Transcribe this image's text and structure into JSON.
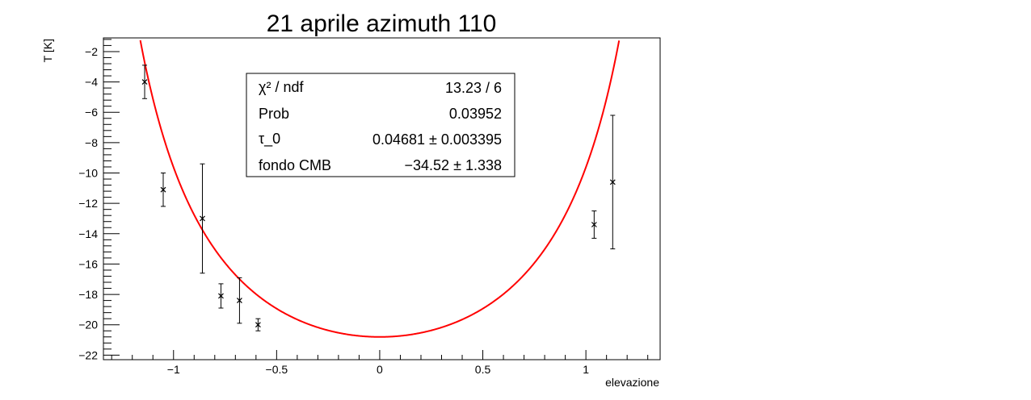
{
  "chart_data": {
    "type": "scatter",
    "title": "21 aprile azimuth 110",
    "xlabel": "elevazione",
    "ylabel": "T [K]",
    "xlim": [
      -1.34,
      1.36
    ],
    "ylim": [
      -22.3,
      -1.1
    ],
    "x_ticks": [
      -1,
      -0.5,
      0,
      0.5,
      1
    ],
    "x_tick_labels": [
      "−1",
      "−0.5",
      "0",
      "0.5",
      "1"
    ],
    "y_ticks": [
      -22,
      -20,
      -18,
      -16,
      -14,
      -12,
      -10,
      -8,
      -6,
      -4,
      -2
    ],
    "y_tick_labels": [
      "−22",
      "−20",
      "−18",
      "−16",
      "−14",
      "−12",
      "−10",
      "−8",
      "−6",
      "−4",
      "−2"
    ],
    "grid": false,
    "series": [
      {
        "kind": "points-with-errors",
        "color": "#000000",
        "points": [
          {
            "x": -1.14,
            "y": -4.0,
            "err": 1.1
          },
          {
            "x": -1.05,
            "y": -11.1,
            "err": 1.1
          },
          {
            "x": -0.86,
            "y": -13.0,
            "err": 3.6
          },
          {
            "x": -0.77,
            "y": -18.1,
            "err": 0.8
          },
          {
            "x": -0.68,
            "y": -18.4,
            "err": 1.5
          },
          {
            "x": -0.59,
            "y": -20.0,
            "err": 0.4
          },
          {
            "x": 1.04,
            "y": -13.4,
            "err": 0.9
          },
          {
            "x": 1.13,
            "y": -10.6,
            "err": 4.4
          }
        ]
      },
      {
        "kind": "fit-curve",
        "color": "#ff0000",
        "function": "p1 + 300*(1 - exp(-p0/cos(x)))",
        "params": {
          "p0": 0.04681,
          "p1": -34.52
        }
      }
    ],
    "stats_box": {
      "rows": [
        {
          "label": "χ² / ndf",
          "value": "13.23 / 6"
        },
        {
          "label": "Prob",
          "value": "0.03952"
        },
        {
          "label": "τ_0",
          "value": "0.04681 ± 0.003395"
        },
        {
          "label": "fondo CMB",
          "value": "−34.52 ± 1.338"
        }
      ]
    }
  }
}
